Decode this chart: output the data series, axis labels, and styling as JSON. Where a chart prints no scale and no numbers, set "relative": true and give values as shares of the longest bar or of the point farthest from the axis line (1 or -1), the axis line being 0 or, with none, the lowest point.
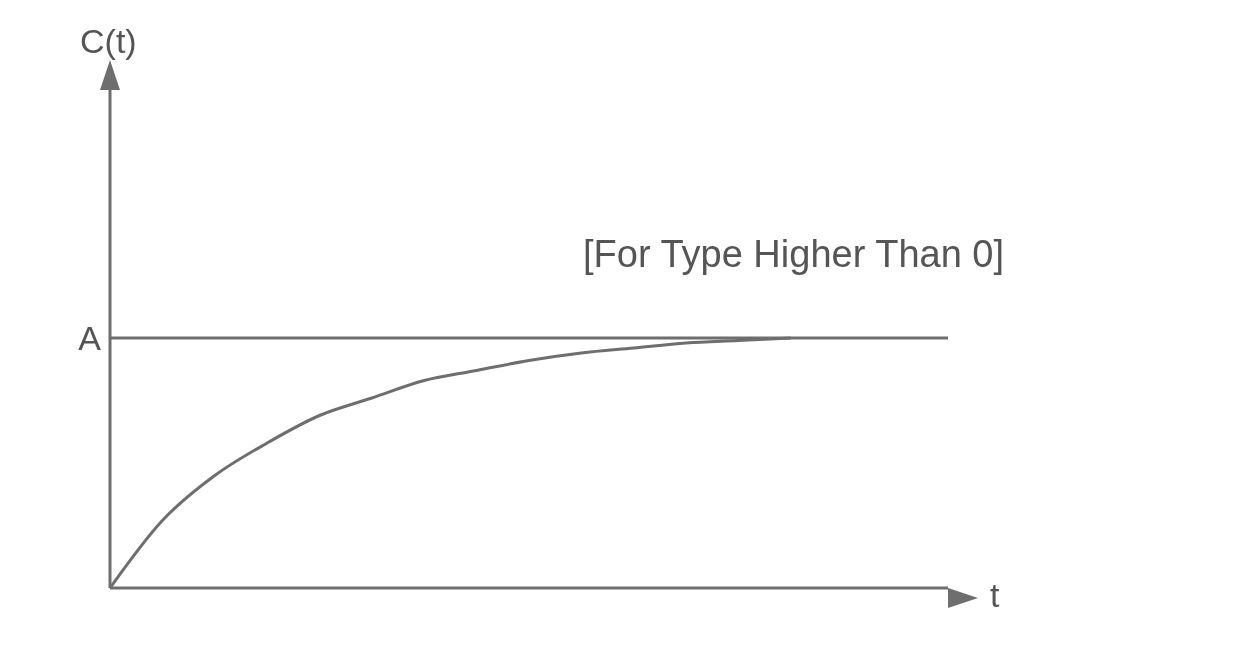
{
  "chart_data": {
    "type": "line",
    "relative": true,
    "xlabel": "t",
    "annotations": [
      "C(t)",
      "[For Type Higher Than 0]"
    ],
    "categories": [
      null,
      null,
      null,
      null,
      null,
      null,
      null,
      null,
      null,
      null,
      null,
      null,
      null,
      null,
      null,
      null,
      null
    ],
    "series": [
      {
        "color": "#6e6e6e",
        "values": [
          0,
          0.27,
          0.45,
          0.58,
          0.69,
          0.76,
          0.83,
          0.87,
          0.91,
          0.94,
          0.96,
          0.98,
          0.99,
          1,
          null,
          null,
          null
        ]
      }
    ],
    "ref_lines": [
      {
        "axis": "y",
        "value": 1,
        "label": "A",
        "color": "#6e6e6e"
      }
    ],
    "marker": "none",
    "line_style": "solid",
    "grid": false,
    "legend": false
  }
}
